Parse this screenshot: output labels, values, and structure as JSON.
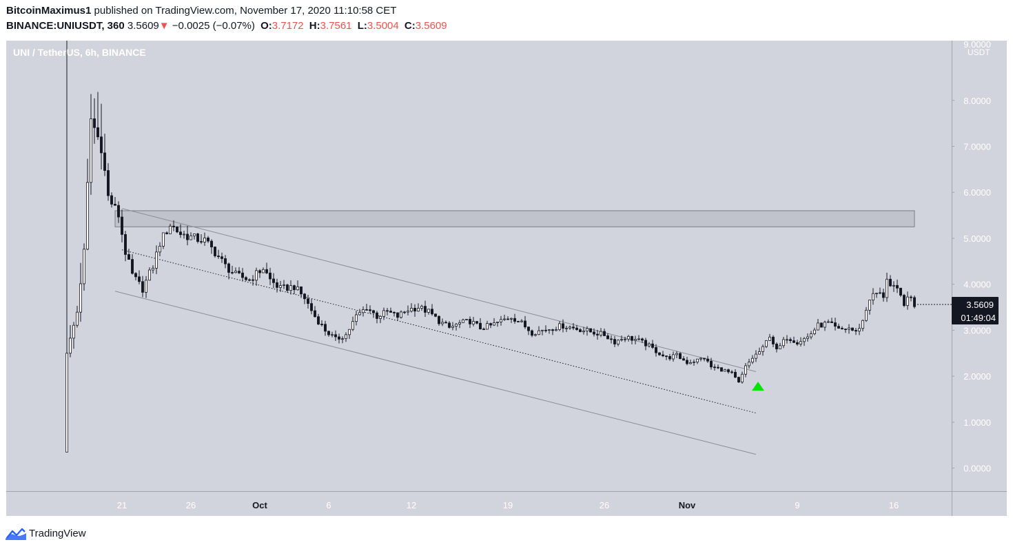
{
  "header": {
    "author": "BitcoinMaximus1",
    "published_text": "published on TradingView.com, November 17, 2020 11:10:58 CET",
    "symbol": "BINANCE:UNIUSDT, 360",
    "last": "3.5609",
    "down_arrow": "▼",
    "change": "−0.0025 (−0.07%)",
    "o_label": "O:",
    "o_value": "3.7172",
    "h_label": "H:",
    "h_value": "3.7561",
    "l_label": "L:",
    "l_value": "3.5004",
    "c_label": "C:",
    "c_value": "3.5609"
  },
  "footer": {
    "brand": "TradingView",
    "logo_icon": "tradingview-logo-icon"
  },
  "colors": {
    "pane_bg": "#d1d4dc",
    "outer_bg": "#ffffff",
    "up": "#ffffff",
    "down": "#131722",
    "zone": "#b2b5be",
    "line": "#8a8d95",
    "marker": "#00e600",
    "last_tag": "#131722"
  },
  "chart_data": {
    "type": "candlestick",
    "title": "UNI / TetherUS, 6h, BINANCE",
    "unit": "USDT",
    "interval": "6h",
    "ylim": [
      -0.5,
      9.3
    ],
    "y_ticks": [
      "0.0000",
      "1.0000",
      "2.0000",
      "3.0000",
      "4.0000",
      "5.0000",
      "6.0000",
      "7.0000",
      "8.0000"
    ],
    "y_tick_values": [
      0,
      1,
      2,
      3,
      4,
      5,
      6,
      7,
      8
    ],
    "y_top_clipped_label": "9.0000",
    "x_ticks": [
      {
        "label": "21",
        "date": "2020-09-21"
      },
      {
        "label": "26",
        "date": "2020-09-26"
      },
      {
        "label": "Oct",
        "date": "2020-10-01"
      },
      {
        "label": "6",
        "date": "2020-10-06"
      },
      {
        "label": "12",
        "date": "2020-10-12"
      },
      {
        "label": "19",
        "date": "2020-10-19"
      },
      {
        "label": "26",
        "date": "2020-10-26"
      },
      {
        "label": "Nov",
        "date": "2020-11-01"
      },
      {
        "label": "9",
        "date": "2020-11-09"
      },
      {
        "label": "16",
        "date": "2020-11-16"
      }
    ],
    "x_range": [
      "2020-09-17T00:00",
      "2020-11-17T12:00"
    ],
    "close_path": [
      [
        "2020-09-17T00:00",
        2.5
      ],
      [
        "2020-09-17T18:00",
        3.4
      ],
      [
        "2020-09-18T06:00",
        4.7
      ],
      [
        "2020-09-18T18:00",
        7.6
      ],
      [
        "2020-09-19T12:00",
        7.0
      ],
      [
        "2020-09-20T00:00",
        5.9
      ],
      [
        "2020-09-20T18:00",
        5.5
      ],
      [
        "2020-09-21T06:00",
        4.7
      ],
      [
        "2020-09-21T18:00",
        4.2
      ],
      [
        "2020-09-22T12:00",
        3.9
      ],
      [
        "2020-09-23T06:00",
        4.4
      ],
      [
        "2020-09-23T18:00",
        4.9
      ],
      [
        "2020-09-24T12:00",
        5.3
      ],
      [
        "2020-09-25T06:00",
        5.1
      ],
      [
        "2020-09-26T06:00",
        5.0
      ],
      [
        "2020-09-27T00:00",
        4.95
      ],
      [
        "2020-09-27T18:00",
        4.7
      ],
      [
        "2020-09-28T12:00",
        4.4
      ],
      [
        "2020-09-29T06:00",
        4.2
      ],
      [
        "2020-09-30T06:00",
        4.1
      ],
      [
        "2020-10-01T06:00",
        4.35
      ],
      [
        "2020-10-01T18:00",
        4.1
      ],
      [
        "2020-10-02T12:00",
        3.9
      ],
      [
        "2020-10-03T12:00",
        3.95
      ],
      [
        "2020-10-04T06:00",
        3.7
      ],
      [
        "2020-10-05T00:00",
        3.3
      ],
      [
        "2020-10-05T18:00",
        3.0
      ],
      [
        "2020-10-06T12:00",
        2.8
      ],
      [
        "2020-10-07T06:00",
        2.9
      ],
      [
        "2020-10-08T00:00",
        3.3
      ],
      [
        "2020-10-08T18:00",
        3.5
      ],
      [
        "2020-10-09T12:00",
        3.3
      ],
      [
        "2020-10-10T06:00",
        3.4
      ],
      [
        "2020-10-11T00:00",
        3.3
      ],
      [
        "2020-10-11T18:00",
        3.45
      ],
      [
        "2020-10-12T12:00",
        3.5
      ],
      [
        "2020-10-13T06:00",
        3.4
      ],
      [
        "2020-10-14T00:00",
        3.2
      ],
      [
        "2020-10-14T18:00",
        3.05
      ],
      [
        "2020-10-15T12:00",
        3.15
      ],
      [
        "2020-10-16T06:00",
        3.2
      ],
      [
        "2020-10-17T00:00",
        3.05
      ],
      [
        "2020-10-17T18:00",
        3.1
      ],
      [
        "2020-10-18T12:00",
        3.2
      ],
      [
        "2020-10-19T06:00",
        3.3
      ],
      [
        "2020-10-20T00:00",
        3.15
      ],
      [
        "2020-10-20T18:00",
        2.95
      ],
      [
        "2020-10-21T12:00",
        3.0
      ],
      [
        "2020-10-22T06:00",
        3.05
      ],
      [
        "2020-10-23T00:00",
        3.1
      ],
      [
        "2020-10-23T18:00",
        3.05
      ],
      [
        "2020-10-24T12:00",
        3.0
      ],
      [
        "2020-10-25T06:00",
        2.95
      ],
      [
        "2020-10-26T00:00",
        2.9
      ],
      [
        "2020-10-26T18:00",
        2.75
      ],
      [
        "2020-10-27T12:00",
        2.85
      ],
      [
        "2020-10-28T06:00",
        2.8
      ],
      [
        "2020-10-29T00:00",
        2.7
      ],
      [
        "2020-10-29T18:00",
        2.55
      ],
      [
        "2020-10-30T12:00",
        2.4
      ],
      [
        "2020-10-31T06:00",
        2.45
      ],
      [
        "2020-11-01T00:00",
        2.3
      ],
      [
        "2020-11-01T18:00",
        2.35
      ],
      [
        "2020-11-02T06:00",
        2.4
      ],
      [
        "2020-11-02T18:00",
        2.2
      ],
      [
        "2020-11-03T12:00",
        2.15
      ],
      [
        "2020-11-04T06:00",
        2.05
      ],
      [
        "2020-11-04T18:00",
        1.85
      ],
      [
        "2020-11-05T06:00",
        2.2
      ],
      [
        "2020-11-05T18:00",
        2.4
      ],
      [
        "2020-11-06T12:00",
        2.6
      ],
      [
        "2020-11-07T00:00",
        2.9
      ],
      [
        "2020-11-07T12:00",
        2.55
      ],
      [
        "2020-11-08T06:00",
        2.85
      ],
      [
        "2020-11-09T00:00",
        2.75
      ],
      [
        "2020-11-09T18:00",
        2.85
      ],
      [
        "2020-11-10T12:00",
        3.1
      ],
      [
        "2020-11-11T06:00",
        3.15
      ],
      [
        "2020-11-12T00:00",
        3.0
      ],
      [
        "2020-11-12T18:00",
        3.05
      ],
      [
        "2020-11-13T06:00",
        2.95
      ],
      [
        "2020-11-13T18:00",
        3.2
      ],
      [
        "2020-11-14T06:00",
        3.7
      ],
      [
        "2020-11-14T18:00",
        3.8
      ],
      [
        "2020-11-15T06:00",
        3.75
      ],
      [
        "2020-11-15T12:00",
        4.15
      ],
      [
        "2020-11-15T18:00",
        3.95
      ],
      [
        "2020-11-16T06:00",
        3.85
      ],
      [
        "2020-11-16T18:00",
        3.6
      ],
      [
        "2020-11-17T06:00",
        3.7
      ],
      [
        "2020-11-17T12:00",
        3.56
      ]
    ],
    "resistance_zone": {
      "y_low": 5.25,
      "y_high": 5.6,
      "x_start": "2020-09-20T12:00",
      "x_end": "2020-11-17T12:00"
    },
    "lines": [
      {
        "name": "channel-upper",
        "style": "solid",
        "from": [
          "2020-09-21T00:00",
          5.65
        ],
        "to": [
          "2020-11-06T00:00",
          2.1
        ]
      },
      {
        "name": "channel-lower",
        "style": "solid",
        "from": [
          "2020-09-20T12:00",
          3.85
        ],
        "to": [
          "2020-11-06T00:00",
          0.3
        ]
      },
      {
        "name": "channel-mid",
        "style": "dotted",
        "from": [
          "2020-09-21T00:00",
          4.75
        ],
        "to": [
          "2020-11-06T00:00",
          1.2
        ]
      }
    ],
    "breakout_marker": {
      "date": "2020-11-05T18:00",
      "value": 1.85,
      "shape": "triangle-up"
    },
    "last_price": {
      "value": 3.5609,
      "label": "3.5609",
      "countdown": "01:49:04"
    }
  }
}
